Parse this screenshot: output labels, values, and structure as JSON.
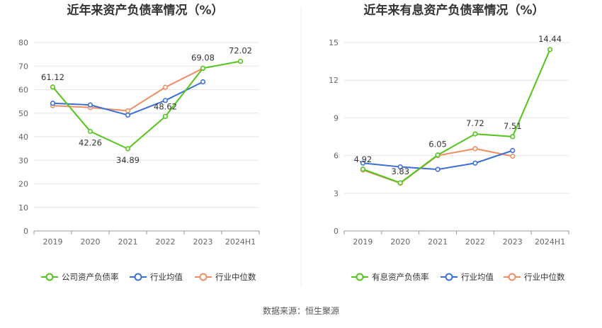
{
  "source_text": "数据来源：恒生聚源",
  "chart_data": [
    {
      "type": "line",
      "title": "近年来资产负债率情况（%）",
      "categories": [
        "2019",
        "2020",
        "2021",
        "2022",
        "2023",
        "2024H1"
      ],
      "ylim": [
        0,
        80
      ],
      "yticks": [
        0,
        10,
        20,
        30,
        40,
        50,
        60,
        70,
        80
      ],
      "grid": true,
      "legend_position": "bottom",
      "series": [
        {
          "name": "公司资产负债率",
          "color": "#52c41a",
          "values": [
            61.12,
            42.26,
            34.89,
            48.62,
            69.08,
            72.02
          ],
          "labels": [
            "61.12",
            "42.26",
            "34.89",
            "48.62",
            "69.08",
            "72.02"
          ]
        },
        {
          "name": "行业均值",
          "color": "#3a6fd8",
          "values": [
            54.2,
            53.5,
            49.2,
            55.4,
            63.3,
            null
          ]
        },
        {
          "name": "行业中位数",
          "color": "#f08c64",
          "values": [
            53.2,
            52.4,
            51.0,
            61.0,
            69.0,
            null
          ]
        }
      ]
    },
    {
      "type": "line",
      "title": "近年来有息资产负债率情况（%）",
      "categories": [
        "2019",
        "2020",
        "2021",
        "2022",
        "2023",
        "2024H1"
      ],
      "ylim": [
        0,
        15
      ],
      "yticks": [
        0,
        3,
        6,
        9,
        12,
        15
      ],
      "grid": true,
      "legend_position": "bottom",
      "series": [
        {
          "name": "有息资产负债率",
          "color": "#52c41a",
          "values": [
            4.92,
            3.83,
            6.05,
            7.72,
            7.51,
            14.44
          ],
          "labels": [
            "4.92",
            "3.83",
            "6.05",
            "7.72",
            "7.51",
            "14.44"
          ]
        },
        {
          "name": "行业均值",
          "color": "#3a6fd8",
          "values": [
            5.4,
            5.1,
            4.9,
            5.4,
            6.4,
            null
          ]
        },
        {
          "name": "行业中位数",
          "color": "#f08c64",
          "values": [
            4.85,
            3.8,
            6.0,
            6.55,
            5.95,
            null
          ]
        }
      ]
    }
  ]
}
